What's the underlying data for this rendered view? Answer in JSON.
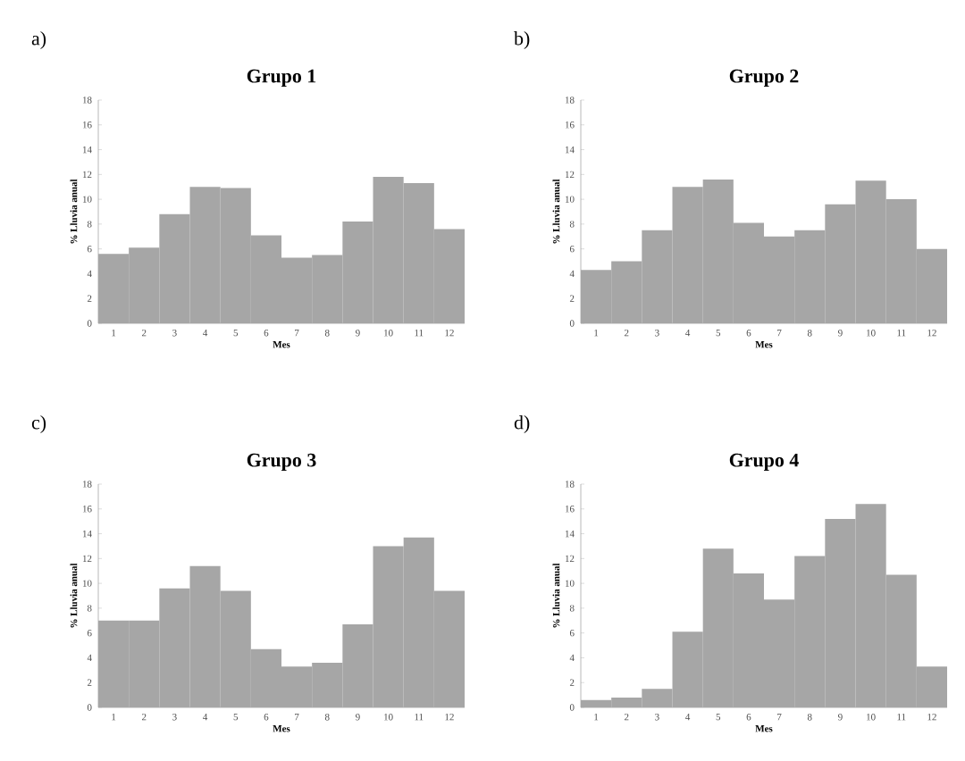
{
  "chart_data": [
    {
      "type": "bar",
      "title": "Grupo 1",
      "annotations": [
        "a)"
      ],
      "xlabel": "Mes",
      "ylabel": "% Lluvia anual",
      "categories": [
        "1",
        "2",
        "3",
        "4",
        "5",
        "6",
        "7",
        "8",
        "9",
        "10",
        "11",
        "12"
      ],
      "color": "#a6a6a6",
      "ylim": [
        0,
        18
      ],
      "yticks": [
        0,
        2,
        4,
        6,
        8,
        10,
        12,
        14,
        16,
        18
      ],
      "values": [
        5.6,
        6.1,
        8.8,
        11,
        10.9,
        7.1,
        5.3,
        5.5,
        8.2,
        11.8,
        11.3,
        7.6
      ]
    },
    {
      "type": "bar",
      "title": "Grupo 2",
      "annotations": [
        "b)"
      ],
      "xlabel": "Mes",
      "ylabel": "% Lluvia anual",
      "categories": [
        "1",
        "2",
        "3",
        "4",
        "5",
        "6",
        "7",
        "8",
        "9",
        "10",
        "11",
        "12"
      ],
      "color": "#a6a6a6",
      "ylim": [
        0,
        18
      ],
      "yticks": [
        0,
        2,
        4,
        6,
        8,
        10,
        12,
        14,
        16,
        18
      ],
      "values": [
        4.3,
        5,
        7.5,
        11,
        11.6,
        8.1,
        7,
        7.5,
        9.6,
        11.5,
        10,
        6
      ]
    },
    {
      "type": "bar",
      "title": "Grupo 3",
      "annotations": [
        "c)"
      ],
      "xlabel": "Mes",
      "ylabel": "% Lluvia anual",
      "categories": [
        "1",
        "2",
        "3",
        "4",
        "5",
        "6",
        "7",
        "8",
        "9",
        "10",
        "11",
        "12"
      ],
      "color": "#a6a6a6",
      "ylim": [
        0,
        18
      ],
      "yticks": [
        0,
        2,
        4,
        6,
        8,
        10,
        12,
        14,
        16,
        18
      ],
      "values": [
        7,
        7,
        9.6,
        11.4,
        9.4,
        4.7,
        3.3,
        3.6,
        6.7,
        13,
        13.7,
        9.4
      ]
    },
    {
      "type": "bar",
      "title": "Grupo 4",
      "annotations": [
        "d)"
      ],
      "xlabel": "Mes",
      "ylabel": "% Lluvia anual",
      "categories": [
        "1",
        "2",
        "3",
        "4",
        "5",
        "6",
        "7",
        "8",
        "9",
        "10",
        "11",
        "12"
      ],
      "color": "#a6a6a6",
      "ylim": [
        0,
        18
      ],
      "yticks": [
        0,
        2,
        4,
        6,
        8,
        10,
        12,
        14,
        16,
        18
      ],
      "values": [
        0.6,
        0.8,
        1.5,
        6.1,
        12.8,
        10.8,
        8.7,
        12.2,
        15.2,
        16.4,
        10.7,
        3.3
      ]
    }
  ]
}
